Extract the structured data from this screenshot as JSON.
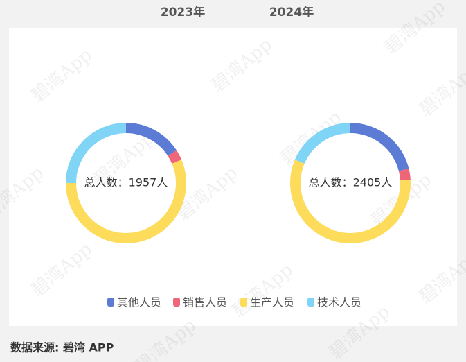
{
  "chart_data": [
    {
      "type": "pie",
      "title": "2023年",
      "center_label": "总人数：1957人",
      "values": [
        310,
        55,
        1103,
        489
      ]
    },
    {
      "type": "pie",
      "title": "2024年",
      "center_label": "总人数：2405人",
      "values": [
        508,
        73,
        1376,
        448
      ]
    }
  ],
  "legend": {
    "items": [
      {
        "name": "其他人员",
        "color": "#5b7bd5"
      },
      {
        "name": "销售人员",
        "color": "#ee6677"
      },
      {
        "name": "生产人员",
        "color": "#fddc5c"
      },
      {
        "name": "技术人员",
        "color": "#80d4f5"
      }
    ]
  },
  "source": "数据来源: 碧湾 APP",
  "watermark": "碧湾App"
}
